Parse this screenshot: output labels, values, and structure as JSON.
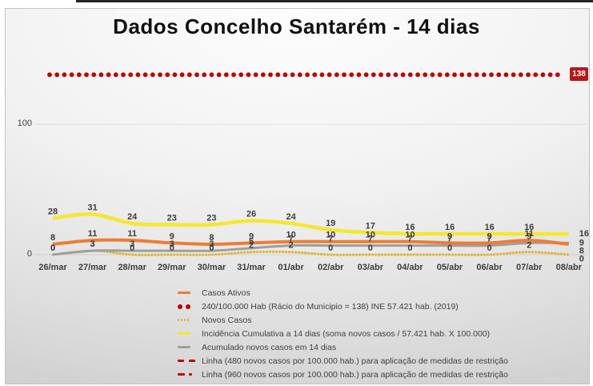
{
  "chart_data": {
    "type": "line",
    "title": "Dados Concelho Santarém - 14 dias",
    "xlabel": "",
    "ylabel": "",
    "ylim": [
      0,
      143
    ],
    "grid": "horizontal-faint",
    "legend_position": "bottom",
    "categories": [
      "26/mar",
      "27/mar",
      "28/mar",
      "29/mar",
      "30/mar",
      "31/mar",
      "01/abr",
      "02/abr",
      "03/abr",
      "04/abr",
      "05/abr",
      "06/abr",
      "07/abr",
      "08/abr"
    ],
    "yticks": [
      {
        "value": 100,
        "label": "100"
      },
      {
        "value": 0,
        "label": "0"
      }
    ],
    "series": [
      {
        "id": "novos-casos",
        "name": "Novos Casos",
        "color": "#dfb63c",
        "style": "dotted",
        "values": [
          0,
          3,
          0,
          0,
          0,
          2,
          2,
          0,
          0,
          0,
          0,
          0,
          2,
          0
        ]
      },
      {
        "id": "acumulado-14-dias",
        "name": "Acumulado novos casos em 14 dias",
        "color": "#9e9e9e",
        "style": "solid",
        "values": [
          0,
          3,
          3,
          3,
          3,
          5,
          7,
          7,
          7,
          7,
          7,
          7,
          9,
          9
        ]
      },
      {
        "id": "casos-ativos",
        "name": "Casos Ativos",
        "color": "#ed7d31",
        "style": "solid",
        "values": [
          8,
          11,
          11,
          9,
          8,
          9,
          10,
          10,
          10,
          10,
          9,
          9,
          11,
          8
        ]
      },
      {
        "id": "incidencia-cumulativa",
        "name": "Incidência Cumulativa a 14 dias (soma novos casos / 57.421 hab. X 100.000)",
        "color": "#f5e72e",
        "style": "solid",
        "values": [
          28,
          31,
          24,
          23,
          23,
          26,
          24,
          19,
          17,
          16,
          16,
          16,
          16,
          16
        ]
      }
    ],
    "threshold": {
      "name": "240/100.000 Hab (Rácio do Municipio = 138)",
      "value": 138,
      "label": "138",
      "color": "#c00000",
      "style": "round-dots"
    }
  },
  "legend": {
    "items": [
      {
        "id": "casos-ativos",
        "marker": "line",
        "color": "#ed7d31",
        "label": "Casos Ativos"
      },
      {
        "id": "racio-municipio",
        "marker": "dots",
        "color": "#c00000",
        "label": "240/100.000 Hab (Rácio do Municipio = 138) INE 57.421 hab. (2019)"
      },
      {
        "id": "novos-casos",
        "marker": "dotted-line",
        "color": "#dfb63c",
        "label": "Novos Casos"
      },
      {
        "id": "incidencia-cumulativa",
        "marker": "line",
        "color": "#f5e72e",
        "label": "Incidência Cumulativa a 14 dias (soma novos casos / 57.421 hab. X 100.000)"
      },
      {
        "id": "acumulado-14-dias",
        "marker": "line",
        "color": "#9e9e9e",
        "label": "Acumulado novos casos em 14 dias"
      },
      {
        "id": "linha-480",
        "marker": "dash-dash",
        "color": "#c00000",
        "label": "Linha (480 novos casos por 100.000 hab.) para aplicação de medidas de restrição"
      },
      {
        "id": "linha-960",
        "marker": "dash-dot",
        "color": "#c00000",
        "label": "Linha (960 novos casos por 100.000 hab.) para aplicação de medidas de restrição"
      }
    ]
  }
}
